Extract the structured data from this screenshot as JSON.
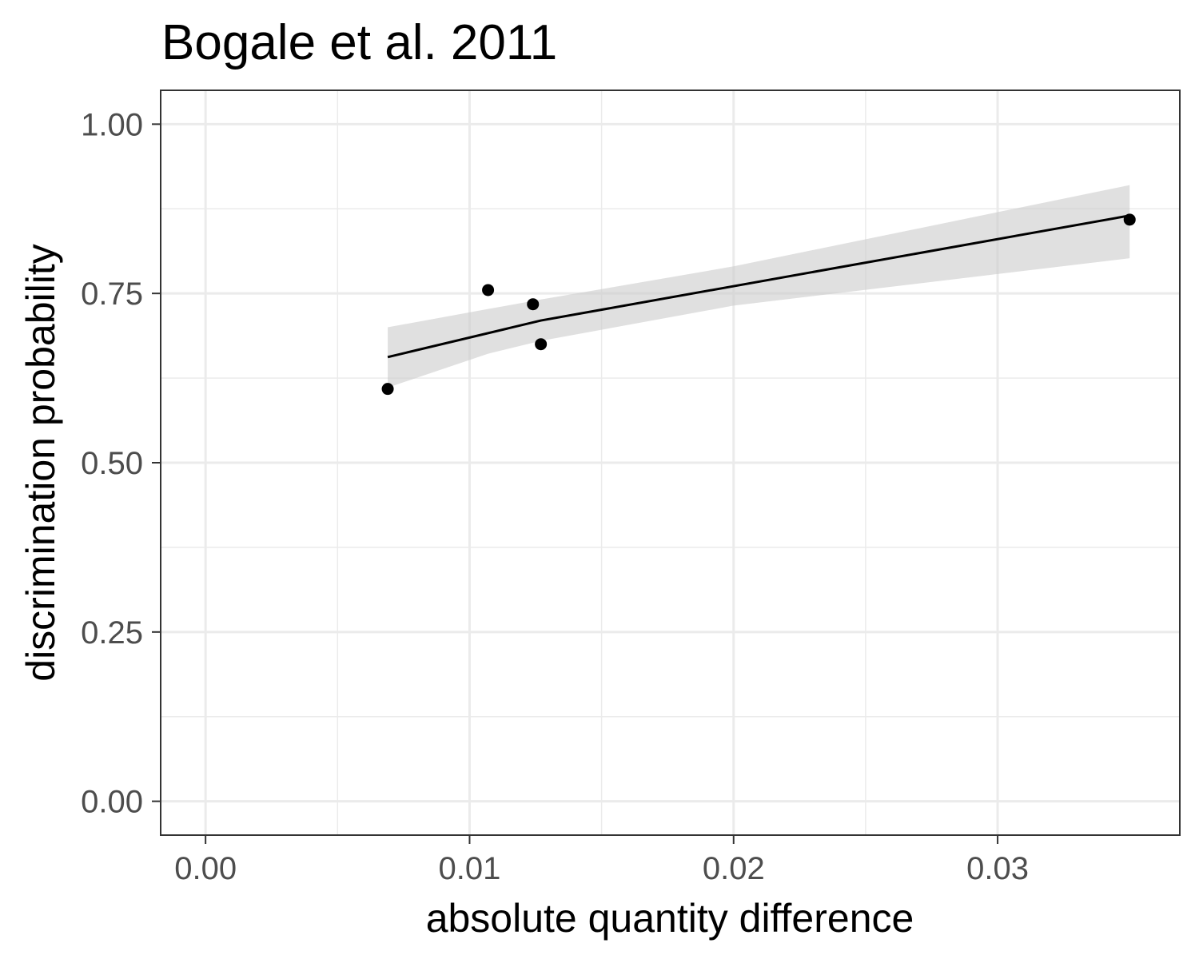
{
  "chart_data": {
    "type": "scatter",
    "title": "Bogale et al. 2011",
    "xlabel": "absolute quantity difference",
    "ylabel": "discrimination probability",
    "xlim": [
      -0.0017,
      0.0369
    ],
    "ylim": [
      -0.05,
      1.05
    ],
    "x_ticks": [
      0.0,
      0.01,
      0.02,
      0.03
    ],
    "x_tick_labels": [
      "0.00",
      "0.01",
      "0.02",
      "0.03"
    ],
    "y_ticks": [
      0.0,
      0.25,
      0.5,
      0.75,
      1.0
    ],
    "y_tick_labels": [
      "0.00",
      "0.25",
      "0.50",
      "0.75",
      "1.00"
    ],
    "grid": true,
    "points": [
      {
        "x": 0.0069,
        "y": 0.609
      },
      {
        "x": 0.0107,
        "y": 0.755
      },
      {
        "x": 0.0124,
        "y": 0.734
      },
      {
        "x": 0.0127,
        "y": 0.675
      },
      {
        "x": 0.035,
        "y": 0.859
      }
    ],
    "fit_line": [
      {
        "x": 0.0069,
        "y": 0.656
      },
      {
        "x": 0.0127,
        "y": 0.71
      },
      {
        "x": 0.035,
        "y": 0.865
      }
    ],
    "confidence_band": {
      "x": [
        0.0069,
        0.0107,
        0.0127,
        0.02,
        0.035
      ],
      "upper": [
        0.7,
        0.727,
        0.741,
        0.79,
        0.91
      ],
      "lower": [
        0.611,
        0.661,
        0.68,
        0.732,
        0.802
      ]
    },
    "colors": {
      "points": "#000000",
      "fit_line": "#000000",
      "band": "#cccccc",
      "grid": "#ebebeb",
      "panel_border": "#333333",
      "tick_label": "#4d4d4d"
    }
  }
}
